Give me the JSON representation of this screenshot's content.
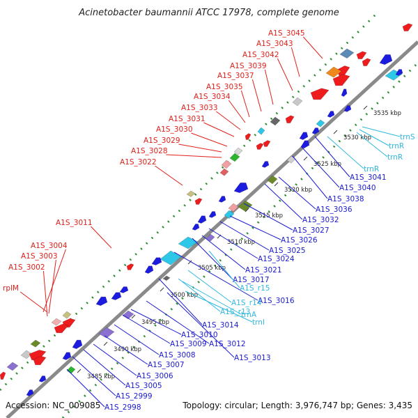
{
  "title": "Acinetobacter baumannii ATCC 17978, complete genome",
  "footer": {
    "accession": "Accession: NC_009085",
    "summary": "Topology: circular; Length: 3,976,747 bp; Genes: 3,435"
  },
  "colors": {
    "backbone": "#8a8a8a",
    "forward_label": "#e0201a",
    "reverse_label": "#1a1ad0",
    "rna_label": "#2fb8e0",
    "tick_dots": "#2e8b2e"
  },
  "ticks": [
    "3485 kbp",
    "3490 kbp",
    "3495 kbp",
    "3500 kbp",
    "3505 kbp",
    "3510 kbp",
    "3515 kbp",
    "3520 kbp",
    "3525 kbp",
    "3530 kbp",
    "3535 kbp"
  ],
  "forward_labels": [
    "A1S_3045",
    "A1S_3043",
    "A1S_3042",
    "A1S_3039",
    "A1S_3037",
    "A1S_3035",
    "A1S_3034",
    "A1S_3033",
    "A1S_3031",
    "A1S_3030",
    "A1S_3029",
    "A1S_3028",
    "A1S_3022",
    "A1S_3011",
    "A1S_3004",
    "A1S_3003",
    "A1S_3002",
    "rplM"
  ],
  "reverse_labels": [
    "A1S_3041",
    "A1S_3040",
    "A1S_3038",
    "A1S_3036",
    "A1S_3032",
    "A1S_3027",
    "A1S_3026",
    "A1S_3025",
    "A1S_3024",
    "A1S_3021",
    "A1S_3017",
    "A1S_3016",
    "A1S_3014",
    "A1S_3013",
    "A1S_3012",
    "A1S_3010",
    "A1S_3009",
    "A1S_3008",
    "A1S_3007",
    "A1S_3006",
    "A1S_3005",
    "A1S_2999",
    "A1S_2998"
  ],
  "rna_labels": [
    "trnS",
    "trnR",
    "trnR",
    "trnR",
    "A1S_r15",
    "A1S_r14",
    "A1S_r13",
    "trnA",
    "trnI"
  ]
}
